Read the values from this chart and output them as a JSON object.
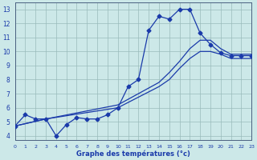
{
  "xlabel": "Graphe des températures (°c)",
  "bg_color": "#cce8e8",
  "grid_color": "#99bbbb",
  "line_color": "#1a3aaa",
  "line1_x": [
    0,
    1,
    2,
    3,
    4,
    5,
    6,
    7,
    8,
    9,
    10,
    11,
    12,
    13,
    14,
    15,
    16,
    17,
    18,
    19,
    20,
    21,
    22,
    23
  ],
  "line1_y": [
    4.7,
    5.5,
    5.2,
    5.2,
    4.0,
    4.8,
    5.3,
    5.2,
    5.2,
    5.5,
    6.0,
    7.5,
    8.0,
    11.5,
    12.5,
    12.3,
    13.0,
    13.0,
    11.3,
    10.5,
    9.9,
    9.7,
    9.7,
    9.7
  ],
  "line2_x": [
    0,
    3,
    10,
    14,
    15,
    16,
    17,
    18,
    19,
    20,
    21,
    22,
    23
  ],
  "line2_y": [
    4.7,
    5.2,
    6.2,
    7.8,
    8.5,
    9.3,
    10.2,
    10.8,
    10.8,
    10.2,
    9.8,
    9.8,
    9.8
  ],
  "line3_x": [
    0,
    3,
    10,
    14,
    15,
    16,
    17,
    18,
    19,
    20,
    21,
    22,
    23
  ],
  "line3_y": [
    4.7,
    5.2,
    6.0,
    7.5,
    8.0,
    8.8,
    9.5,
    10.0,
    10.0,
    9.8,
    9.5,
    9.5,
    9.5
  ],
  "xlim": [
    0,
    23
  ],
  "ylim": [
    3.7,
    13.5
  ],
  "yticks": [
    4,
    5,
    6,
    7,
    8,
    9,
    10,
    11,
    12,
    13
  ],
  "xticks": [
    0,
    1,
    2,
    3,
    4,
    5,
    6,
    7,
    8,
    9,
    10,
    11,
    12,
    13,
    14,
    15,
    16,
    17,
    18,
    19,
    20,
    21,
    22,
    23
  ],
  "marker": "D",
  "markersize": 2.5,
  "linewidth": 0.9
}
